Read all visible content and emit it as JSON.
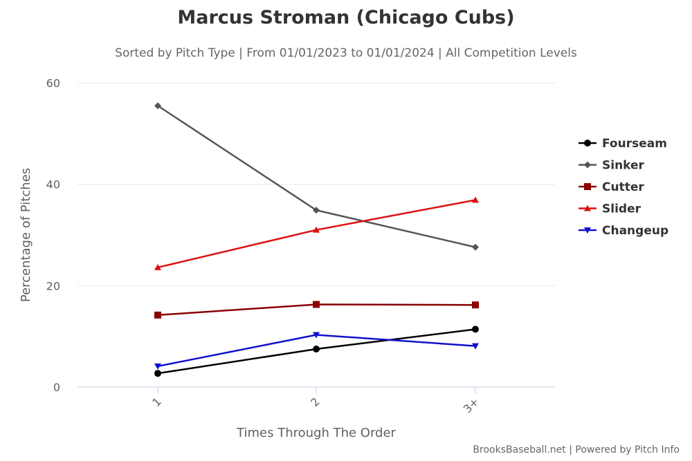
{
  "chart_data": {
    "type": "line",
    "title": "Marcus Stroman (Chicago Cubs)",
    "subtitle": "Sorted by Pitch Type | From 01/01/2023 to 01/01/2024 | All Competition Levels",
    "xlabel": "Times Through The Order",
    "ylabel": "Percentage of Pitches",
    "categories": [
      "1",
      "2",
      "3+"
    ],
    "ylim": [
      0,
      60
    ],
    "yticks": [
      0,
      20,
      40,
      60
    ],
    "grid": true,
    "legend_position": "right",
    "series": [
      {
        "name": "Fourseam",
        "color": "#000000",
        "marker": "circle",
        "values": [
          2.7,
          7.5,
          11.4
        ]
      },
      {
        "name": "Sinker",
        "color": "#555555",
        "marker": "diamond",
        "values": [
          55.5,
          34.9,
          27.6
        ]
      },
      {
        "name": "Cutter",
        "color": "#8b0000",
        "marker": "square",
        "values": [
          14.2,
          16.3,
          16.2
        ]
      },
      {
        "name": "Slider",
        "color": "#dd1111",
        "marker": "triangle",
        "values": [
          23.6,
          31.0,
          36.9
        ]
      },
      {
        "name": "Changeup",
        "color": "#1111cc",
        "marker": "triangle-down",
        "values": [
          4.1,
          10.3,
          8.1
        ]
      }
    ]
  },
  "credits": "BrooksBaseball.net | Powered by Pitch Info"
}
